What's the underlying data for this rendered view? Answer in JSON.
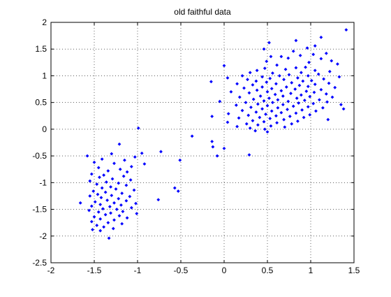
{
  "chart_data": {
    "type": "scatter",
    "title": "old faithful data",
    "xlabel": "",
    "ylabel": "",
    "xlim": [
      -2,
      1.5
    ],
    "ylim": [
      -2.5,
      2
    ],
    "xticks": [
      -2,
      -1.5,
      -1,
      -0.5,
      0,
      0.5,
      1,
      1.5
    ],
    "xtick_labels": [
      "-2",
      "-1.5",
      "-1",
      "-0.5",
      "0",
      "0.5",
      "1",
      "1.5"
    ],
    "yticks": [
      -2.5,
      -2,
      -1.5,
      -1,
      -0.5,
      0,
      0.5,
      1,
      1.5,
      2
    ],
    "ytick_labels": [
      "-2.5",
      "-2",
      "-1.5",
      "-1",
      "-0.5",
      "0",
      "0.5",
      "1",
      "1.5",
      "2"
    ],
    "grid": true,
    "marker_color": "#0000ff",
    "series": [
      {
        "points": [
          [
            1.41,
            1.86
          ],
          [
            1.12,
            1.72
          ],
          [
            0.83,
            1.66
          ],
          [
            0.52,
            1.62
          ],
          [
            1.05,
            1.56
          ],
          [
            0.96,
            1.52
          ],
          [
            0.46,
            1.5
          ],
          [
            0.8,
            1.46
          ],
          [
            1.18,
            1.42
          ],
          [
            1.03,
            1.4
          ],
          [
            0.88,
            1.38
          ],
          [
            0.66,
            1.36
          ],
          [
            0.54,
            1.36
          ],
          [
            0.74,
            1.33
          ],
          [
            1.12,
            1.32
          ],
          [
            1.24,
            1.28
          ],
          [
            0.49,
            1.27
          ],
          [
            0.98,
            1.25
          ],
          [
            1.31,
            1.22
          ],
          [
            0.61,
            1.2
          ],
          [
            0.0,
            1.19
          ],
          [
            0.94,
            1.16
          ],
          [
            0.83,
            1.15
          ],
          [
            0.47,
            1.14
          ],
          [
            0.71,
            1.12
          ],
          [
            1.05,
            1.1
          ],
          [
            0.38,
            1.1
          ],
          [
            1.22,
            1.08
          ],
          [
            0.3,
            1.06
          ],
          [
            0.89,
            1.06
          ],
          [
            0.56,
            1.05
          ],
          [
            1.09,
            1.03
          ],
          [
            0.75,
            1.02
          ],
          [
            0.97,
            1.0
          ],
          [
            0.64,
            1.0
          ],
          [
            0.21,
            1.0
          ],
          [
            0.44,
            0.98
          ],
          [
            1.33,
            0.98
          ],
          [
            0.04,
            0.96
          ],
          [
            0.85,
            0.96
          ],
          [
            0.53,
            0.95
          ],
          [
            1.15,
            0.94
          ],
          [
            0.27,
            0.93
          ],
          [
            0.69,
            0.93
          ],
          [
            1.01,
            0.91
          ],
          [
            0.37,
            0.9
          ],
          [
            0.91,
            0.9
          ],
          [
            -0.15,
            0.89
          ],
          [
            0.49,
            0.88
          ],
          [
            0.78,
            0.87
          ],
          [
            1.21,
            0.86
          ],
          [
            0.15,
            0.85
          ],
          [
            0.6,
            0.85
          ],
          [
            1.05,
            0.84
          ],
          [
            0.33,
            0.83
          ],
          [
            0.87,
            0.82
          ],
          [
            0.97,
            0.8
          ],
          [
            0.44,
            0.79
          ],
          [
            0.72,
            0.79
          ],
          [
            1.28,
            0.78
          ],
          [
            0.23,
            0.77
          ],
          [
            0.55,
            0.76
          ],
          [
            0.82,
            0.75
          ],
          [
            1.12,
            0.74
          ],
          [
            0.38,
            0.73
          ],
          [
            0.66,
            0.72
          ],
          [
            0.95,
            0.71
          ],
          [
            0.08,
            0.7
          ],
          [
            0.5,
            0.7
          ],
          [
            1.04,
            0.69
          ],
          [
            0.29,
            0.68
          ],
          [
            0.77,
            0.67
          ],
          [
            1.18,
            0.66
          ],
          [
            0.59,
            0.65
          ],
          [
            0.89,
            0.64
          ],
          [
            0.42,
            0.62
          ],
          [
            0.68,
            0.62
          ],
          [
            0.99,
            0.61
          ],
          [
            0.18,
            0.6
          ],
          [
            1.25,
            0.6
          ],
          [
            0.52,
            0.58
          ],
          [
            0.84,
            0.58
          ],
          [
            0.34,
            0.56
          ],
          [
            1.1,
            0.55
          ],
          [
            0.62,
            0.55
          ],
          [
            0.93,
            0.54
          ],
          [
            0.46,
            0.53
          ],
          [
            0.74,
            0.52
          ],
          [
            -0.05,
            0.52
          ],
          [
            1.19,
            0.51
          ],
          [
            0.25,
            0.5
          ],
          [
            0.56,
            0.5
          ],
          [
            0.86,
            0.49
          ],
          [
            1.03,
            0.48
          ],
          [
            0.39,
            0.47
          ],
          [
            0.68,
            0.46
          ],
          [
            1.35,
            0.46
          ],
          [
            0.14,
            0.45
          ],
          [
            0.5,
            0.44
          ],
          [
            0.8,
            0.43
          ],
          [
            0.97,
            0.42
          ],
          [
            0.31,
            0.41
          ],
          [
            0.62,
            0.4
          ],
          [
            1.14,
            0.4
          ],
          [
            1.38,
            0.38
          ],
          [
            0.44,
            0.38
          ],
          [
            0.73,
            0.37
          ],
          [
            0.9,
            0.36
          ],
          [
            0.21,
            0.35
          ],
          [
            0.55,
            0.34
          ],
          [
            1.06,
            0.34
          ],
          [
            0.37,
            0.32
          ],
          [
            0.66,
            0.31
          ],
          [
            0.83,
            0.3
          ],
          [
            0.05,
            0.29
          ],
          [
            0.48,
            0.28
          ],
          [
            0.99,
            0.27
          ],
          [
            0.28,
            0.26
          ],
          [
            0.6,
            0.25
          ],
          [
            0.76,
            0.24
          ],
          [
            -0.14,
            0.24
          ],
          [
            0.41,
            0.22
          ],
          [
            0.92,
            0.22
          ],
          [
            0.17,
            0.21
          ],
          [
            0.53,
            0.2
          ],
          [
            0.69,
            0.18
          ],
          [
            1.2,
            0.18
          ],
          [
            0.33,
            0.16
          ],
          [
            0.85,
            0.15
          ],
          [
            0.46,
            0.14
          ],
          [
            0.04,
            0.13
          ],
          [
            0.61,
            0.12
          ],
          [
            0.26,
            0.1
          ],
          [
            0.78,
            0.1
          ],
          [
            0.39,
            0.08
          ],
          [
            0.54,
            0.06
          ],
          [
            0.15,
            0.05
          ],
          [
            0.7,
            0.04
          ],
          [
            0.3,
            0.02
          ],
          [
            0.47,
            0.0
          ],
          [
            0.36,
            -0.03
          ],
          [
            0.5,
            -0.05
          ],
          [
            -0.37,
            -0.13
          ],
          [
            -0.14,
            -0.23
          ],
          [
            -0.13,
            -0.33
          ],
          [
            0.0,
            -0.36
          ],
          [
            0.29,
            -0.48
          ],
          [
            -0.08,
            -0.5
          ],
          [
            -0.51,
            -0.58
          ],
          [
            -0.99,
            0.02
          ],
          [
            -1.21,
            -0.28
          ],
          [
            -0.73,
            -0.42
          ],
          [
            -0.95,
            -0.45
          ],
          [
            -1.3,
            -0.46
          ],
          [
            -1.58,
            -0.5
          ],
          [
            -1.03,
            -0.52
          ],
          [
            -1.41,
            -0.56
          ],
          [
            -1.15,
            -0.58
          ],
          [
            -0.92,
            -0.65
          ],
          [
            -1.5,
            -0.62
          ],
          [
            -1.27,
            -0.64
          ],
          [
            -1.07,
            -0.7
          ],
          [
            -1.45,
            -0.72
          ],
          [
            -1.2,
            -0.75
          ],
          [
            -1.34,
            -0.78
          ],
          [
            -1.12,
            -0.8
          ],
          [
            -1.53,
            -0.84
          ],
          [
            -1.39,
            -0.86
          ],
          [
            -1.16,
            -0.88
          ],
          [
            -1.44,
            -0.9
          ],
          [
            -1.29,
            -0.93
          ],
          [
            -1.08,
            -0.95
          ],
          [
            -1.55,
            -0.97
          ],
          [
            -1.36,
            -0.99
          ],
          [
            -1.22,
            -1.01
          ],
          [
            -1.47,
            -1.03
          ],
          [
            -1.13,
            -1.05
          ],
          [
            -1.31,
            -1.08
          ],
          [
            -1.41,
            -1.1
          ],
          [
            -0.57,
            -1.1
          ],
          [
            -1.25,
            -1.12
          ],
          [
            -1.04,
            -1.14
          ],
          [
            -1.51,
            -1.16
          ],
          [
            -1.37,
            -1.18
          ],
          [
            -1.18,
            -1.2
          ],
          [
            -1.46,
            -1.22
          ],
          [
            -1.3,
            -1.24
          ],
          [
            -1.55,
            -1.25
          ],
          [
            -1.09,
            -1.26
          ],
          [
            -1.42,
            -1.28
          ],
          [
            -1.22,
            -1.3
          ],
          [
            -0.76,
            -1.32
          ],
          [
            -1.35,
            -1.33
          ],
          [
            -1.13,
            -1.34
          ],
          [
            -1.49,
            -1.36
          ],
          [
            -1.66,
            -1.38
          ],
          [
            -1.27,
            -1.38
          ],
          [
            -1.02,
            -1.39
          ],
          [
            -1.43,
            -1.41
          ],
          [
            -1.19,
            -1.42
          ],
          [
            -1.53,
            -1.44
          ],
          [
            -1.32,
            -1.45
          ],
          [
            -1.07,
            -1.47
          ],
          [
            -1.4,
            -1.49
          ],
          [
            -1.24,
            -1.5
          ],
          [
            -1.56,
            -1.52
          ],
          [
            -1.17,
            -1.54
          ],
          [
            -1.45,
            -1.55
          ],
          [
            -1.31,
            -1.57
          ],
          [
            -1.01,
            -1.58
          ],
          [
            -1.37,
            -1.6
          ],
          [
            -1.21,
            -1.62
          ],
          [
            -1.5,
            -1.64
          ],
          [
            -1.12,
            -1.66
          ],
          [
            -1.43,
            -1.68
          ],
          [
            -1.27,
            -1.7
          ],
          [
            -1.53,
            -1.73
          ],
          [
            -1.34,
            -1.75
          ],
          [
            -1.18,
            -1.77
          ],
          [
            -1.47,
            -1.8
          ],
          [
            -1.39,
            -1.83
          ],
          [
            -1.28,
            -1.86
          ],
          [
            -1.52,
            -1.88
          ],
          [
            -1.43,
            -1.9
          ],
          [
            -1.33,
            -2.04
          ],
          [
            -0.53,
            -1.16
          ]
        ]
      }
    ]
  }
}
